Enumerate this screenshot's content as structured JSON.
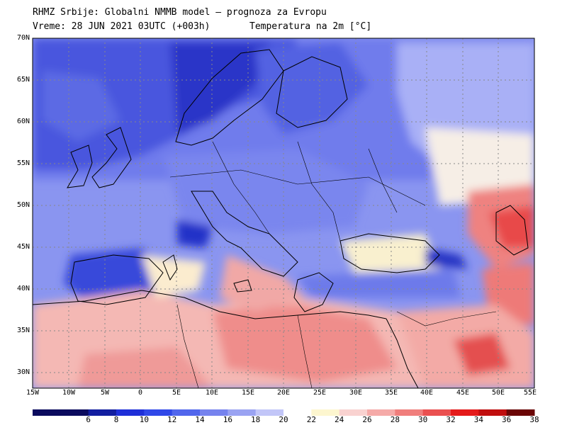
{
  "header": {
    "title": "RHMZ Srbije: Globalni NMMB model — prognoza za Evropu",
    "time": "Vreme: 28 JUN 2021 03UTC (+003h)",
    "variable": "Temperatura na 2m [°C]"
  },
  "axes": {
    "lat_labels": [
      "70N",
      "65N",
      "60N",
      "55N",
      "50N",
      "45N",
      "40N",
      "35N",
      "30N"
    ],
    "lon_labels": [
      "15W",
      "10W",
      "5W",
      "0",
      "5E",
      "10E",
      "15E",
      "20E",
      "25E",
      "30E",
      "35E",
      "40E",
      "45E",
      "50E",
      "55E"
    ]
  },
  "colorbar": {
    "ticks": [
      "6",
      "8",
      "10",
      "12",
      "14",
      "16",
      "18",
      "20",
      "22",
      "24",
      "26",
      "28",
      "30",
      "32",
      "34",
      "36",
      "38"
    ],
    "colors": [
      "#0b0b5e",
      "#121ea0",
      "#1e2fd8",
      "#3048e8",
      "#5166ec",
      "#7683ee",
      "#9aa3f2",
      "#c2c6f8",
      "#ffffff",
      "#fdf6cf",
      "#f9d2d0",
      "#f5aaa8",
      "#f07e7c",
      "#ea5050",
      "#e41a1a",
      "#c00e0e",
      "#6a0505"
    ]
  },
  "colors": {
    "ocean_cold": "#5b6ae0",
    "warm": "#f0a0a0",
    "hot": "#e84040"
  }
}
